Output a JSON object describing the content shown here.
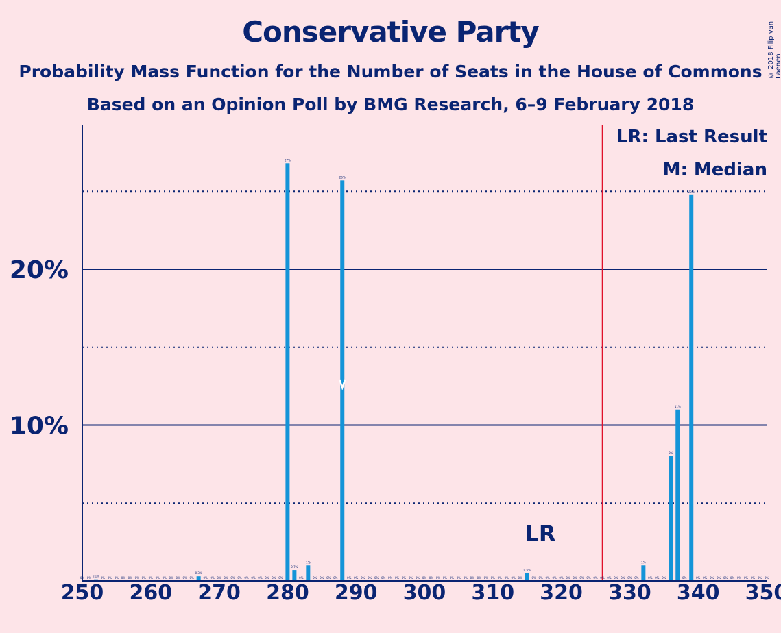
{
  "title": "Conservative Party",
  "subtitle1": "Probability Mass Function for the Number of Seats in the House of Commons",
  "subtitle2": "Based on an Opinion Poll by BMG Research, 6–9 February 2018",
  "copyright": "© 2018 Filip van Laenen",
  "legend": {
    "lr": "LR: Last Result",
    "m": "M: Median"
  },
  "colors": {
    "background": "#fde4e8",
    "bar": "#1494d8",
    "axis": "#0a2472",
    "last_result_line": "#e0102a"
  },
  "chart_data": {
    "type": "bar",
    "title": "Conservative Party",
    "xlabel": "",
    "ylabel": "",
    "xlim": [
      250,
      350
    ],
    "ylim": [
      0,
      29
    ],
    "x_ticks": [
      250,
      260,
      270,
      280,
      290,
      300,
      310,
      320,
      330,
      340,
      350
    ],
    "y_ticks_labeled": [
      {
        "value": 10,
        "label": "10%"
      },
      {
        "value": 20,
        "label": "20%"
      }
    ],
    "y_ticks_dotted": [
      5,
      15,
      25
    ],
    "last_result": 326,
    "last_result_label": "LR",
    "median": 288,
    "x": [
      250,
      251,
      252,
      253,
      254,
      255,
      256,
      257,
      258,
      259,
      260,
      261,
      262,
      263,
      264,
      265,
      266,
      267,
      268,
      269,
      270,
      271,
      272,
      273,
      274,
      275,
      276,
      277,
      278,
      279,
      280,
      281,
      282,
      283,
      284,
      285,
      286,
      287,
      288,
      289,
      290,
      291,
      292,
      293,
      294,
      295,
      296,
      297,
      298,
      299,
      300,
      301,
      302,
      303,
      304,
      305,
      306,
      307,
      308,
      309,
      310,
      311,
      312,
      313,
      314,
      315,
      316,
      317,
      318,
      319,
      320,
      321,
      322,
      323,
      324,
      325,
      326,
      327,
      328,
      329,
      330,
      331,
      332,
      333,
      334,
      335,
      336,
      337,
      338,
      339,
      340,
      341,
      342,
      343,
      344,
      345,
      346,
      347,
      348,
      349,
      350
    ],
    "values": [
      0,
      0,
      0.1,
      0,
      0,
      0,
      0,
      0,
      0,
      0,
      0,
      0,
      0,
      0,
      0,
      0,
      0,
      0.3,
      0,
      0,
      0,
      0,
      0,
      0,
      0,
      0,
      0,
      0,
      0,
      0,
      26.8,
      0.7,
      0,
      1,
      0,
      0,
      0,
      0,
      25.7,
      0,
      0,
      0,
      0,
      0,
      0,
      0,
      0,
      0,
      0,
      0,
      0,
      0,
      0,
      0,
      0,
      0,
      0,
      0,
      0,
      0,
      0,
      0,
      0,
      0,
      0,
      0.5,
      0,
      0,
      0,
      0,
      0,
      0,
      0,
      0,
      0,
      0,
      0,
      0,
      0,
      0,
      0,
      0,
      1,
      0,
      0,
      0,
      8,
      11,
      0,
      24.8,
      0,
      0,
      0,
      0,
      0,
      0,
      0,
      0,
      0,
      0,
      0
    ],
    "labels": [
      "0%",
      "0%",
      "0.1%",
      "0%",
      "0%",
      "0%",
      "0%",
      "0%",
      "0%",
      "0%",
      "0%",
      "0%",
      "0%",
      "0%",
      "0%",
      "0%",
      "0%",
      "0.3%",
      "0%",
      "0%",
      "0%",
      "0%",
      "0%",
      "0%",
      "0%",
      "0%",
      "0%",
      "0%",
      "0%",
      "0%",
      "27%",
      "0.7%",
      "0%",
      "1%",
      "0%",
      "0%",
      "0%",
      "0%",
      "26%",
      "0%",
      "0%",
      "0%",
      "0%",
      "0%",
      "0%",
      "0%",
      "0%",
      "0%",
      "0%",
      "0%",
      "0%",
      "0%",
      "0%",
      "0%",
      "0%",
      "0%",
      "0%",
      "0%",
      "0%",
      "0%",
      "0%",
      "0%",
      "0%",
      "0%",
      "0%",
      "0.5%",
      "0%",
      "0%",
      "0%",
      "0%",
      "0%",
      "0%",
      "0%",
      "0%",
      "0%",
      "0%",
      "0%",
      "0%",
      "0%",
      "0%",
      "0%",
      "0%",
      "1%",
      "0%",
      "0%",
      "0%",
      "8%",
      "11%",
      "0%",
      "25%",
      "0%",
      "0%",
      "0%",
      "0%",
      "0%",
      "0%",
      "0%",
      "0%",
      "0%",
      "0%",
      "0%"
    ]
  }
}
